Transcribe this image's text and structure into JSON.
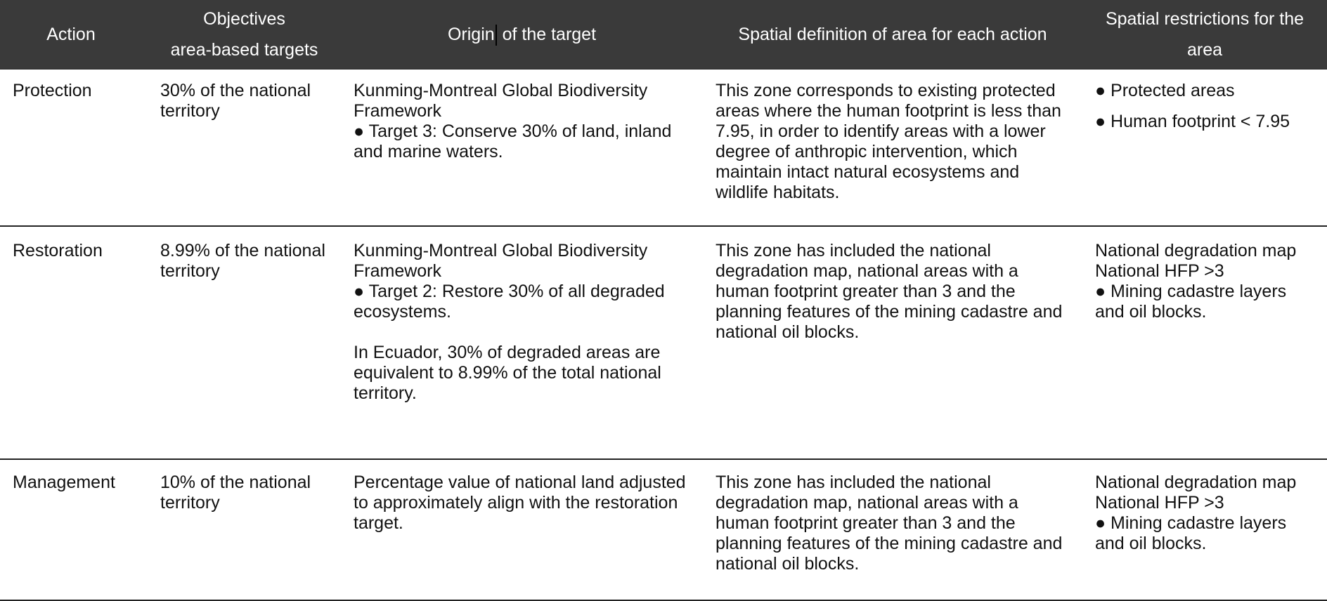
{
  "header": {
    "col1": "Action",
    "col2_line1": "Objectives",
    "col2_line2": "area-based targets",
    "col3_part1": "Origin",
    "col3_part2": " of the target",
    "col4": "Spatial definition of area for each action",
    "col5": "Spatial restrictions for the area"
  },
  "rows": [
    {
      "action": "Protection",
      "objective": "30% of the national territory",
      "origin_lines": [
        "Kunming-Montreal Global Biodiversity Framework",
        "● Target 3: Conserve 30% of land, inland and marine waters."
      ],
      "definition": "This zone corresponds to existing protected areas where the human footprint is less than 7.95, in order to identify areas with a lower degree of anthropic intervention, which maintain intact natural ecosystems and wildlife habitats.",
      "restrictions": [
        "● Protected areas",
        "● Human footprint < 7.95"
      ]
    },
    {
      "action": "Restoration",
      "objective": "8.99% of the national territory",
      "origin_lines": [
        "Kunming-Montreal Global Biodiversity Framework",
        "● Target 2: Restore 30% of all degraded ecosystems.",
        "In Ecuador, 30% of degraded areas are equivalent to 8.99% of the total national territory."
      ],
      "definition": "This zone has included the national degradation map, national areas with a human footprint greater than 3 and the planning features of the mining cadastre and national oil blocks.",
      "restrictions": [
        "National degradation map",
        "National HFP >3",
        "● Mining cadastre layers and oil blocks."
      ]
    },
    {
      "action": "Management",
      "objective": "10% of the national territory",
      "origin_lines": [
        "Percentage value of national land adjusted to approximately align with the restoration target."
      ],
      "definition": "This zone has included the national degradation map, national areas with a human footprint greater than 3 and the planning features of the mining cadastre and national oil blocks.",
      "restrictions": [
        "National degradation map",
        "National HFP >3",
        "● Mining cadastre layers and oil blocks."
      ]
    }
  ]
}
